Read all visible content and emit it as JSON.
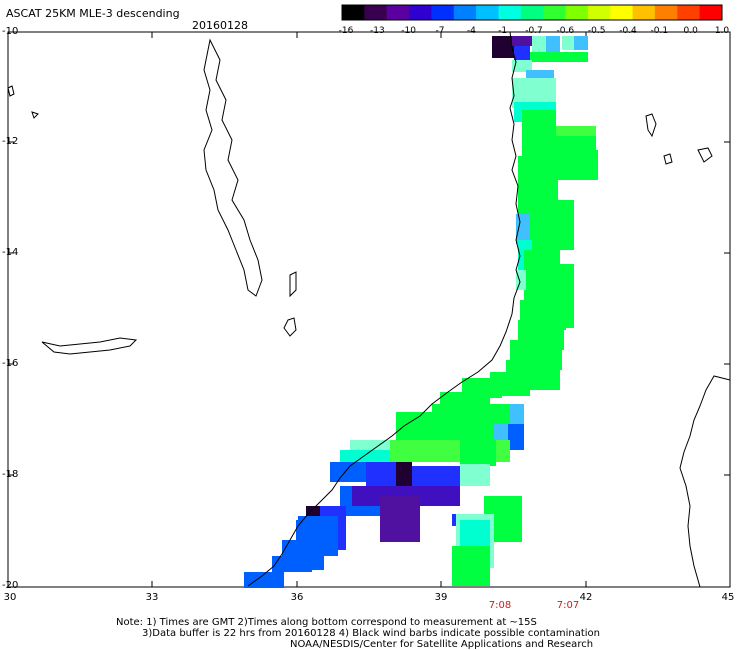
{
  "header": {
    "title": "ASCAT 25KM MLE-3 descending",
    "date": "20160128"
  },
  "colorbar": {
    "labels": [
      "-16",
      "-13",
      "-10",
      "-7",
      "-4",
      "-1",
      "-0.7",
      "-0.6",
      "-0.5",
      "-0.4",
      "-0.1",
      "0.0",
      "1.0"
    ],
    "colors": [
      "#000000",
      "#3a0050",
      "#5a00a0",
      "#3000d0",
      "#0030ff",
      "#0080ff",
      "#00c0ff",
      "#00ffe0",
      "#00ff80",
      "#30ff30",
      "#80ff00",
      "#d0ff00",
      "#ffff00",
      "#ffc000",
      "#ff8000",
      "#ff4000",
      "#ff0000"
    ]
  },
  "axes": {
    "lat_labels": [
      "-10",
      "-12",
      "-14",
      "-16",
      "-18",
      "-20"
    ],
    "lon_labels": [
      "30",
      "33",
      "36",
      "39",
      "42",
      "45"
    ]
  },
  "times": [
    "7:08",
    "7:07"
  ],
  "notes": {
    "line1": "Note: 1) Times are GMT 2)Times along bottom correspond to measurement at ~15S",
    "line2": "3)Data buffer is 22 hrs from 20160128 4) Black wind barbs indicate possible contamination",
    "line3": "NOAA/NESDIS/Center for Satellite Applications and Research"
  },
  "palette": {
    "green": "#00ff40",
    "light_green": "#40ff40",
    "cyan": "#00ffd0",
    "light_cyan": "#80ffd0",
    "sky": "#40c0ff",
    "blue": "#0060ff",
    "royal": "#2030ff",
    "indigo": "#4010c0",
    "purple": "#5010a0",
    "dark_purple": "#200030"
  }
}
